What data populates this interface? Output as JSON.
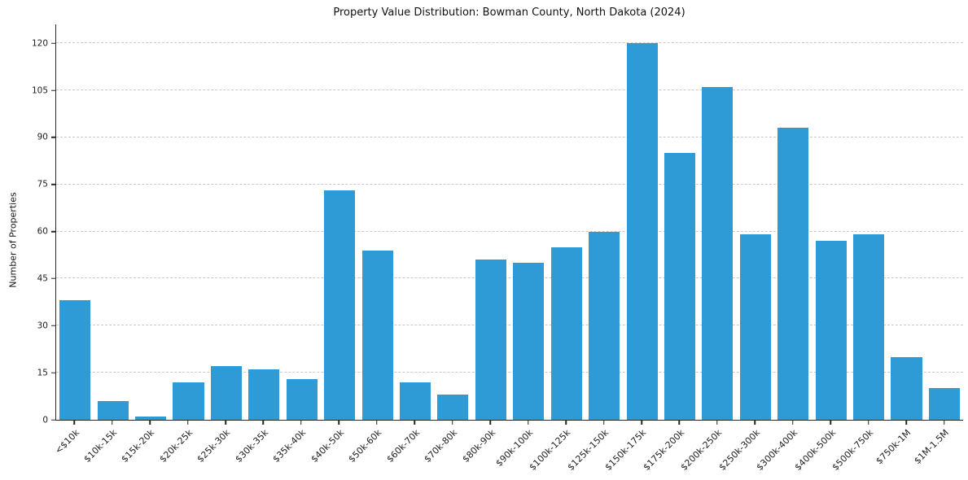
{
  "chart_data": {
    "type": "bar",
    "title": "Property Value Distribution: Bowman County, North Dakota (2024)",
    "xlabel": "",
    "ylabel": "Number of Properties",
    "categories": [
      "<$10k",
      "$10k-15k",
      "$15k-20k",
      "$20k-25k",
      "$25k-30k",
      "$30k-35k",
      "$35k-40k",
      "$40k-50k",
      "$50k-60k",
      "$60k-70k",
      "$70k-80k",
      "$80k-90k",
      "$90k-100k",
      "$100k-125k",
      "$125k-150k",
      "$150k-175k",
      "$175k-200k",
      "$200k-250k",
      "$250k-300k",
      "$300k-400k",
      "$400k-500k",
      "$500k-750k",
      "$750k-1M",
      "$1M-1.5M"
    ],
    "values": [
      38,
      6,
      1,
      12,
      17,
      16,
      13,
      73,
      54,
      12,
      8,
      51,
      50,
      55,
      60,
      120,
      85,
      106,
      59,
      93,
      57,
      59,
      20,
      10
    ],
    "yticks": [
      0,
      15,
      30,
      45,
      60,
      75,
      90,
      105,
      120
    ],
    "ylim": [
      0,
      126
    ],
    "bar_color": "#2e9ad6",
    "grid": "dashed-horizontal",
    "legend_position": "none"
  }
}
